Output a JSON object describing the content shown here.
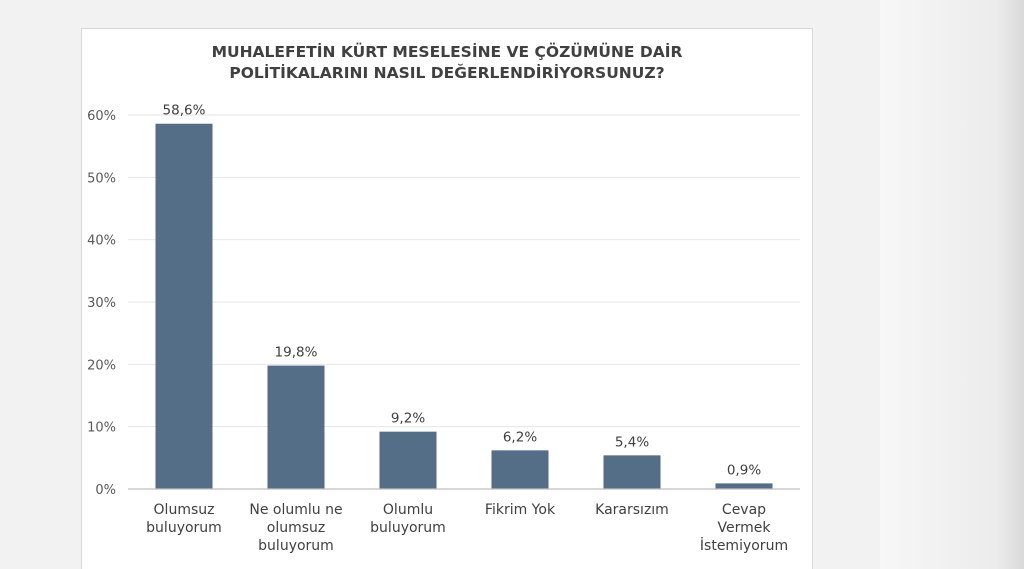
{
  "chart_data": {
    "type": "bar",
    "title_lines": [
      "MUHALEFETİN KÜRT MESELESİNE VE ÇÖZÜMÜNE DAİR",
      "POLİTİKALARINI NASIL DEĞERLENDİRİYORSUNUZ?"
    ],
    "categories": [
      [
        "Olumsuz",
        "buluyorum"
      ],
      [
        "Ne olumlu ne",
        "olumsuz",
        "buluyorum"
      ],
      [
        "Olumlu",
        "buluyorum"
      ],
      [
        "Fikrim Yok"
      ],
      [
        "Kararsızım"
      ],
      [
        "Cevap",
        "Vermek",
        "İstemiyorum"
      ]
    ],
    "values": [
      58.6,
      19.8,
      9.2,
      6.2,
      5.4,
      0.9
    ],
    "data_labels": [
      "58,6%",
      "19,8%",
      "9,2%",
      "6,2%",
      "5,4%",
      "0,9%"
    ],
    "yticks": [
      0,
      10,
      20,
      30,
      40,
      50,
      60
    ],
    "ytick_labels": [
      "0%",
      "10%",
      "20%",
      "30%",
      "40%",
      "50%",
      "60%"
    ],
    "ylim": [
      0,
      60
    ],
    "xlabel": "",
    "ylabel": "",
    "grid": true,
    "bar_color": "#546e87",
    "grid_color": "#e6e6e6",
    "axis_color": "#bfbfbf"
  }
}
